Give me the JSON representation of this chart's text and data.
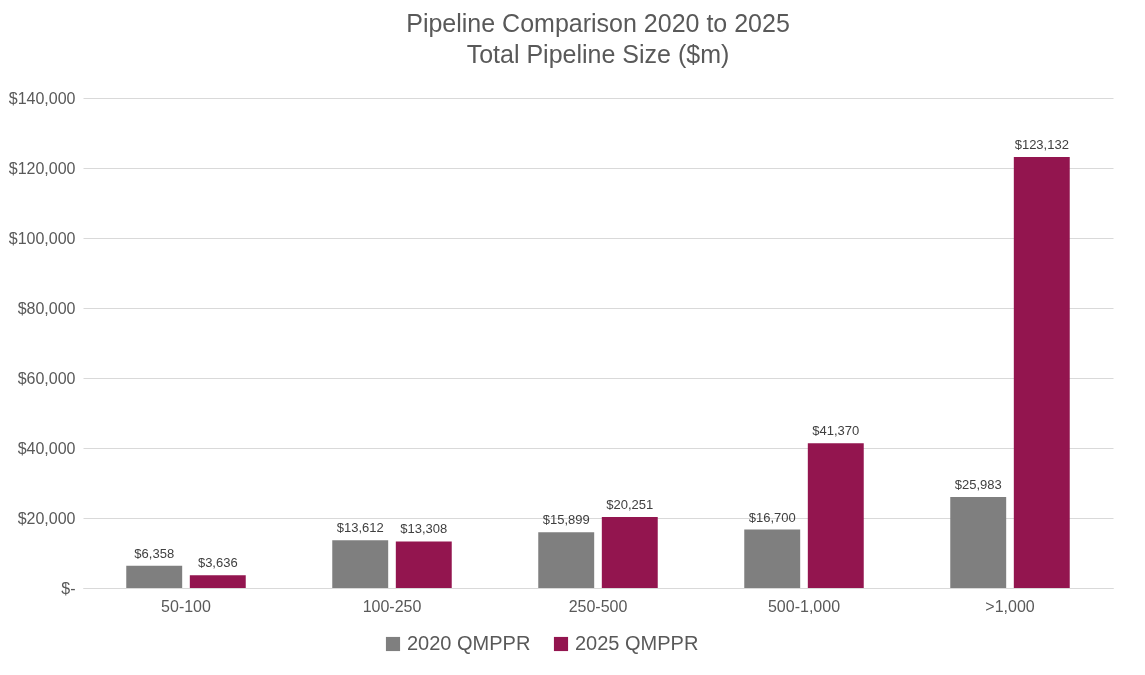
{
  "chart_data": {
    "type": "bar",
    "title": "Pipeline Comparison 2020 to 2025",
    "subtitle": "Total Pipeline Size ($m)",
    "categories": [
      "50-100",
      "100-250",
      "250-500",
      "500-1,000",
      ">1,000"
    ],
    "series": [
      {
        "name": "2020 QMPPR",
        "color": "#7f7f7f",
        "values": [
          6358,
          13612,
          15899,
          16700,
          25983
        ],
        "value_labels": [
          "$6,358",
          "$13,612",
          "$15,899",
          "$16,700",
          "$25,983"
        ]
      },
      {
        "name": "2025 QMPPR",
        "color": "#93154f",
        "values": [
          3636,
          13308,
          20251,
          41370,
          123132
        ],
        "value_labels": [
          "$3,636",
          "$13,308",
          "$20,251",
          "$41,370",
          "$123,132"
        ]
      }
    ],
    "ylim": [
      0,
      140000
    ],
    "yticks": [
      {
        "value": 0,
        "label": "$-"
      },
      {
        "value": 20000,
        "label": "$20,000"
      },
      {
        "value": 40000,
        "label": "$40,000"
      },
      {
        "value": 60000,
        "label": "$60,000"
      },
      {
        "value": 80000,
        "label": "$80,000"
      },
      {
        "value": 100000,
        "label": "$100,000"
      },
      {
        "value": 120000,
        "label": "$120,000"
      },
      {
        "value": 140000,
        "label": "$140,000"
      }
    ],
    "grid": "y",
    "legend": "bottom"
  }
}
